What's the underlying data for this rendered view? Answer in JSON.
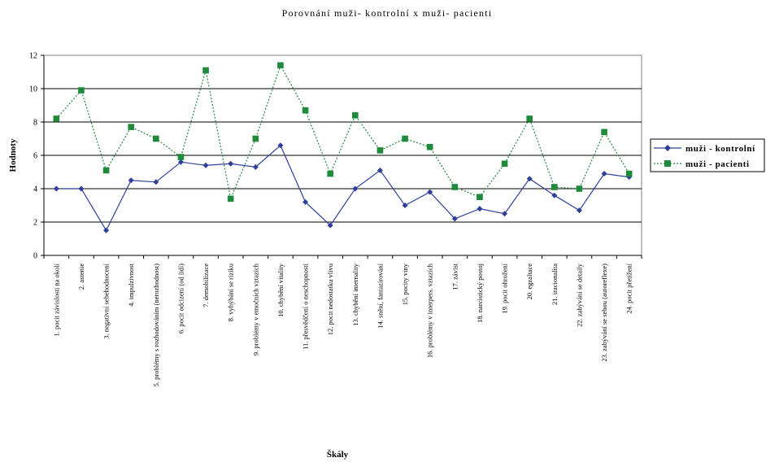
{
  "chart_data": {
    "type": "line",
    "title": "Porovnání muži- kontrolní x muži- pacienti",
    "xlabel": "Škály",
    "ylabel": "Hodnoty",
    "ylim": [
      0,
      12
    ],
    "yticks": [
      0,
      2,
      4,
      6,
      8,
      10,
      12
    ],
    "grid": true,
    "legend_position": "right",
    "categories": [
      "1. pocit závislosti na okolí",
      "2. astenie",
      "3. negativní sebehodnocení",
      "4. impulzivnost",
      "5. problémy s rozhodováním (nerozhodnost)",
      "6. pocit odcizení (od lidí)",
      "7. demobilizace",
      "8. vyhýbání se riziku",
      "9. problémy v emočních vztazích",
      "10. chybění vitality",
      "11. přesvědčení o neschopnosti",
      "12. pocit nedostatku vlivu",
      "13. chybění internality",
      "14. snění, fantazírování",
      "15. pocity viny",
      "16. problémy v interpers. vztazích",
      "17. závist",
      "18. narcistický postoj",
      "19. pocit ohrožení",
      "20. egzaltace",
      "21. iracionalita",
      "22. zabývání se detaily",
      "23. zabývání se sebou (autoreflexe)",
      "24. pocit přetížení"
    ],
    "series": [
      {
        "name": "muži - kontrolní",
        "color": "#2e3f9a",
        "marker": "diamond",
        "line_style": "solid",
        "values": [
          4.0,
          4.0,
          1.5,
          4.5,
          4.4,
          5.6,
          5.4,
          5.5,
          5.3,
          6.6,
          3.2,
          1.8,
          4.0,
          5.1,
          3.0,
          3.8,
          2.2,
          2.8,
          2.5,
          4.6,
          3.6,
          2.7,
          4.9,
          4.7
        ]
      },
      {
        "name": "muži - pacienti",
        "color": "#1f8a3c",
        "marker": "square",
        "line_style": "dotted",
        "values": [
          8.2,
          9.9,
          5.1,
          7.7,
          7.0,
          5.9,
          11.1,
          3.4,
          7.0,
          11.4,
          8.7,
          4.9,
          8.4,
          6.3,
          7.0,
          6.5,
          4.1,
          3.5,
          5.5,
          8.2,
          4.1,
          4.0,
          7.4,
          4.9
        ]
      }
    ]
  }
}
